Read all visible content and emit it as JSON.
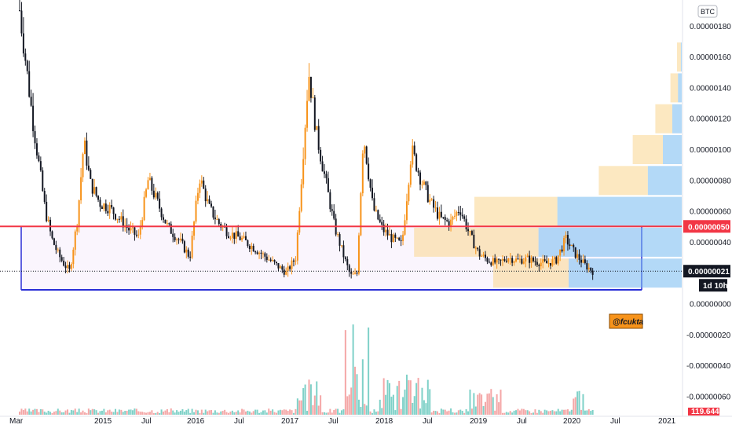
{
  "chart_data": {
    "type": "candlestick",
    "currency": "BTC",
    "watermark": "@fcukta",
    "price_axis": {
      "min": -6e-07,
      "max": 1.9e-06,
      "ticks": [
        "0.00000180",
        "0.00000160",
        "0.00000140",
        "0.00000120",
        "0.00000100",
        "0.00000080",
        "0.00000060",
        "0.00000040",
        "0.00000000",
        "-0.00000020",
        "-0.00000040",
        "-0.00000060"
      ]
    },
    "time_axis": {
      "labels": [
        "Mar",
        "2015",
        "Jul",
        "2016",
        "Jul",
        "2017",
        "Jul",
        "2018",
        "Jul",
        "2019",
        "Jul",
        "2020",
        "Jul",
        "2021"
      ]
    },
    "horizontal_line": {
      "value": 5e-07,
      "label": "0.00000050",
      "color": "#f23645"
    },
    "last_price": {
      "value": 2.1e-07,
      "label": "0.00000021"
    },
    "countdown": {
      "label": "1d 10h"
    },
    "volume_tag": {
      "label": "119.644"
    },
    "range_box": {
      "top": 5e-07,
      "bottom": 1.5e-07,
      "color": "#2a2ed6"
    },
    "colors": {
      "up": "#f7931a",
      "down": "#131722",
      "vol_up": "#7fd1c8",
      "vol_down": "#f4a7a7",
      "profile_up": "#f9d68e",
      "profile_down": "#74b9f0"
    },
    "price_path": [
      [
        0.0,
        1.9
      ],
      [
        0.01,
        1.55
      ],
      [
        0.02,
        1.2
      ],
      [
        0.03,
        0.9
      ],
      [
        0.04,
        0.6
      ],
      [
        0.05,
        0.42
      ],
      [
        0.06,
        0.32
      ],
      [
        0.07,
        0.25
      ],
      [
        0.078,
        0.21
      ],
      [
        0.09,
        0.55
      ],
      [
        0.1,
        1.05
      ],
      [
        0.11,
        0.78
      ],
      [
        0.125,
        0.65
      ],
      [
        0.14,
        0.62
      ],
      [
        0.155,
        0.55
      ],
      [
        0.17,
        0.48
      ],
      [
        0.185,
        0.43
      ],
      [
        0.2,
        0.8
      ],
      [
        0.215,
        0.65
      ],
      [
        0.23,
        0.5
      ],
      [
        0.25,
        0.4
      ],
      [
        0.265,
        0.3
      ],
      [
        0.28,
        0.82
      ],
      [
        0.295,
        0.62
      ],
      [
        0.31,
        0.52
      ],
      [
        0.325,
        0.46
      ],
      [
        0.345,
        0.42
      ],
      [
        0.365,
        0.36
      ],
      [
        0.39,
        0.28
      ],
      [
        0.415,
        0.2
      ],
      [
        0.43,
        0.3
      ],
      [
        0.45,
        1.5
      ],
      [
        0.462,
        1.1
      ],
      [
        0.475,
        0.82
      ],
      [
        0.49,
        0.5
      ],
      [
        0.505,
        0.3
      ],
      [
        0.515,
        0.18
      ],
      [
        0.525,
        0.19
      ],
      [
        0.535,
        1.1
      ],
      [
        0.55,
        0.62
      ],
      [
        0.565,
        0.48
      ],
      [
        0.58,
        0.42
      ],
      [
        0.595,
        0.38
      ],
      [
        0.61,
        1.0
      ],
      [
        0.625,
        0.8
      ],
      [
        0.64,
        0.65
      ],
      [
        0.655,
        0.55
      ],
      [
        0.67,
        0.52
      ],
      [
        0.685,
        0.62
      ],
      [
        0.7,
        0.45
      ],
      [
        0.715,
        0.32
      ],
      [
        0.73,
        0.28
      ],
      [
        0.745,
        0.26
      ],
      [
        0.76,
        0.3
      ],
      [
        0.775,
        0.28
      ],
      [
        0.79,
        0.29
      ],
      [
        0.805,
        0.27
      ],
      [
        0.82,
        0.26
      ],
      [
        0.835,
        0.28
      ],
      [
        0.85,
        0.42
      ],
      [
        0.865,
        0.32
      ],
      [
        0.88,
        0.25
      ],
      [
        0.892,
        0.21
      ]
    ],
    "volume_profile": [
      {
        "price": 1.6e-06,
        "up": 0.2,
        "down": 0.05
      },
      {
        "price": 1.4e-06,
        "up": 0.4,
        "down": 0.2
      },
      {
        "price": 1.2e-06,
        "up": 0.9,
        "down": 0.5
      },
      {
        "price": 1e-06,
        "up": 1.6,
        "down": 1.0
      },
      {
        "price": 8e-07,
        "up": 2.6,
        "down": 1.8
      },
      {
        "price": 6e-07,
        "up": 4.4,
        "down": 6.6
      },
      {
        "price": 4e-07,
        "up": 6.6,
        "down": 7.6
      },
      {
        "price": 2e-07,
        "up": 4.0,
        "down": 6.0
      }
    ]
  }
}
